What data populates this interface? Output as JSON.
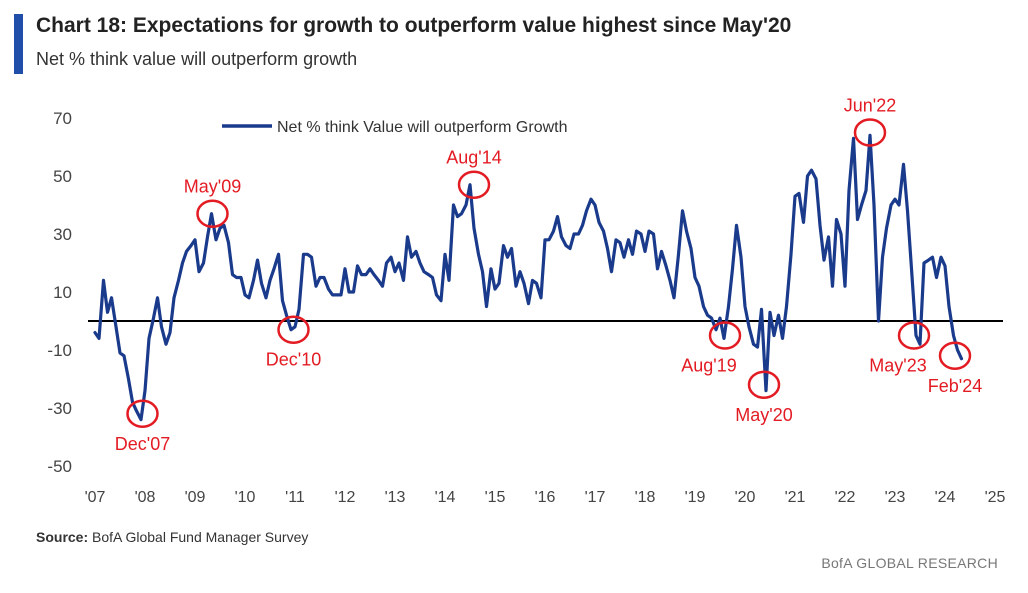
{
  "header": {
    "title": "Chart 18: Expectations for growth to outperform value highest since May'20",
    "subtitle": "Net % think value will outperform growth",
    "accent_color": "#1f4fa8"
  },
  "footer": {
    "source_label": "Source:",
    "source_text": "BofA Global Fund Manager Survey",
    "brand": "BofA GLOBAL RESEARCH"
  },
  "chart_data": {
    "type": "line",
    "legend": {
      "label": "Net % think Value will outperform Growth",
      "position": "top-center"
    },
    "series_color": "#1a3a8c",
    "annotation_color": "#e31b23",
    "ylim": [
      -50,
      70
    ],
    "yticks": [
      70,
      50,
      30,
      10,
      -10,
      -30,
      -50
    ],
    "xlim": [
      2007,
      2025
    ],
    "xticks": [
      {
        "v": 2007,
        "label": "'07"
      },
      {
        "v": 2008,
        "label": "'08"
      },
      {
        "v": 2009,
        "label": "'09"
      },
      {
        "v": 2010,
        "label": "'10"
      },
      {
        "v": 2011,
        "label": "'11"
      },
      {
        "v": 2012,
        "label": "'12"
      },
      {
        "v": 2013,
        "label": "'13"
      },
      {
        "v": 2014,
        "label": "'14"
      },
      {
        "v": 2015,
        "label": "'15"
      },
      {
        "v": 2016,
        "label": "'16"
      },
      {
        "v": 2017,
        "label": "'17"
      },
      {
        "v": 2018,
        "label": "'18"
      },
      {
        "v": 2019,
        "label": "'19"
      },
      {
        "v": 2020,
        "label": "'20"
      },
      {
        "v": 2021,
        "label": "'21"
      },
      {
        "v": 2022,
        "label": "'22"
      },
      {
        "v": 2023,
        "label": "'23"
      },
      {
        "v": 2024,
        "label": "'24"
      },
      {
        "v": 2025,
        "label": "'25"
      }
    ],
    "zero_line": 0,
    "series": [
      {
        "points": [
          [
            2007.0,
            -4
          ],
          [
            2007.08,
            -6
          ],
          [
            2007.17,
            14
          ],
          [
            2007.25,
            3
          ],
          [
            2007.33,
            8
          ],
          [
            2007.42,
            -2
          ],
          [
            2007.5,
            -11
          ],
          [
            2007.58,
            -12
          ],
          [
            2007.67,
            -20
          ],
          [
            2007.75,
            -28
          ],
          [
            2007.83,
            -31
          ],
          [
            2007.92,
            -34
          ],
          [
            2008.0,
            -24
          ],
          [
            2008.08,
            -6
          ],
          [
            2008.17,
            1
          ],
          [
            2008.25,
            8
          ],
          [
            2008.33,
            -2
          ],
          [
            2008.42,
            -8
          ],
          [
            2008.5,
            -4
          ],
          [
            2008.58,
            8
          ],
          [
            2008.67,
            14
          ],
          [
            2008.75,
            20
          ],
          [
            2008.83,
            24
          ],
          [
            2008.92,
            26
          ],
          [
            2009.0,
            28
          ],
          [
            2009.08,
            17
          ],
          [
            2009.17,
            20
          ],
          [
            2009.25,
            29
          ],
          [
            2009.33,
            37
          ],
          [
            2009.42,
            28
          ],
          [
            2009.5,
            32
          ],
          [
            2009.58,
            33
          ],
          [
            2009.67,
            27
          ],
          [
            2009.75,
            16
          ],
          [
            2009.83,
            15
          ],
          [
            2009.92,
            15
          ],
          [
            2010.0,
            9
          ],
          [
            2010.08,
            8
          ],
          [
            2010.17,
            14
          ],
          [
            2010.25,
            21
          ],
          [
            2010.33,
            13
          ],
          [
            2010.42,
            8
          ],
          [
            2010.5,
            14
          ],
          [
            2010.58,
            18
          ],
          [
            2010.67,
            23
          ],
          [
            2010.75,
            7
          ],
          [
            2010.83,
            2
          ],
          [
            2010.92,
            -3
          ],
          [
            2011.0,
            -2
          ],
          [
            2011.08,
            4
          ],
          [
            2011.17,
            23
          ],
          [
            2011.25,
            23
          ],
          [
            2011.33,
            22
          ],
          [
            2011.42,
            12
          ],
          [
            2011.5,
            15
          ],
          [
            2011.58,
            15
          ],
          [
            2011.67,
            11
          ],
          [
            2011.75,
            9
          ],
          [
            2011.83,
            9
          ],
          [
            2011.92,
            9
          ],
          [
            2012.0,
            18
          ],
          [
            2012.08,
            10
          ],
          [
            2012.17,
            10
          ],
          [
            2012.25,
            19
          ],
          [
            2012.33,
            16
          ],
          [
            2012.42,
            16
          ],
          [
            2012.5,
            18
          ],
          [
            2012.58,
            16
          ],
          [
            2012.67,
            14
          ],
          [
            2012.75,
            12
          ],
          [
            2012.83,
            20
          ],
          [
            2012.92,
            22
          ],
          [
            2013.0,
            17
          ],
          [
            2013.08,
            20
          ],
          [
            2013.17,
            14
          ],
          [
            2013.25,
            29
          ],
          [
            2013.33,
            22
          ],
          [
            2013.42,
            24
          ],
          [
            2013.5,
            20
          ],
          [
            2013.58,
            17
          ],
          [
            2013.67,
            16
          ],
          [
            2013.75,
            15
          ],
          [
            2013.83,
            9
          ],
          [
            2013.92,
            7
          ],
          [
            2014.0,
            23
          ],
          [
            2014.08,
            14
          ],
          [
            2014.17,
            40
          ],
          [
            2014.25,
            36
          ],
          [
            2014.33,
            37
          ],
          [
            2014.42,
            40
          ],
          [
            2014.5,
            47
          ],
          [
            2014.58,
            32
          ],
          [
            2014.67,
            23
          ],
          [
            2014.75,
            17
          ],
          [
            2014.83,
            5
          ],
          [
            2014.92,
            18
          ],
          [
            2015.0,
            11
          ],
          [
            2015.08,
            13
          ],
          [
            2015.17,
            26
          ],
          [
            2015.25,
            22
          ],
          [
            2015.33,
            25
          ],
          [
            2015.42,
            12
          ],
          [
            2015.5,
            17
          ],
          [
            2015.58,
            13
          ],
          [
            2015.67,
            6
          ],
          [
            2015.75,
            14
          ],
          [
            2015.83,
            13
          ],
          [
            2015.92,
            8
          ],
          [
            2016.0,
            28
          ],
          [
            2016.08,
            28
          ],
          [
            2016.17,
            31
          ],
          [
            2016.25,
            36
          ],
          [
            2016.33,
            29
          ],
          [
            2016.42,
            26
          ],
          [
            2016.5,
            25
          ],
          [
            2016.58,
            30
          ],
          [
            2016.67,
            30
          ],
          [
            2016.75,
            33
          ],
          [
            2016.83,
            38
          ],
          [
            2016.92,
            42
          ],
          [
            2017.0,
            40
          ],
          [
            2017.08,
            34
          ],
          [
            2017.17,
            31
          ],
          [
            2017.25,
            25
          ],
          [
            2017.33,
            17
          ],
          [
            2017.42,
            28
          ],
          [
            2017.5,
            27
          ],
          [
            2017.58,
            22
          ],
          [
            2017.67,
            28
          ],
          [
            2017.75,
            23
          ],
          [
            2017.83,
            31
          ],
          [
            2017.92,
            30
          ],
          [
            2018.0,
            24
          ],
          [
            2018.08,
            31
          ],
          [
            2018.17,
            30
          ],
          [
            2018.25,
            18
          ],
          [
            2018.33,
            24
          ],
          [
            2018.42,
            19
          ],
          [
            2018.5,
            14
          ],
          [
            2018.58,
            8
          ],
          [
            2018.67,
            23
          ],
          [
            2018.75,
            38
          ],
          [
            2018.83,
            31
          ],
          [
            2018.92,
            25
          ],
          [
            2019.0,
            15
          ],
          [
            2019.08,
            12
          ],
          [
            2019.17,
            5
          ],
          [
            2019.25,
            2
          ],
          [
            2019.33,
            1
          ],
          [
            2019.42,
            -3
          ],
          [
            2019.5,
            1
          ],
          [
            2019.58,
            -6
          ],
          [
            2019.67,
            5
          ],
          [
            2019.75,
            18
          ],
          [
            2019.83,
            33
          ],
          [
            2019.92,
            22
          ],
          [
            2020.0,
            5
          ],
          [
            2020.08,
            -2
          ],
          [
            2020.17,
            -8
          ],
          [
            2020.25,
            -9
          ],
          [
            2020.33,
            4
          ],
          [
            2020.42,
            -24
          ],
          [
            2020.5,
            3
          ],
          [
            2020.58,
            -5
          ],
          [
            2020.67,
            2
          ],
          [
            2020.75,
            -6
          ],
          [
            2020.83,
            5
          ],
          [
            2020.92,
            23
          ],
          [
            2021.0,
            43
          ],
          [
            2021.08,
            44
          ],
          [
            2021.17,
            34
          ],
          [
            2021.25,
            50
          ],
          [
            2021.33,
            52
          ],
          [
            2021.42,
            49
          ],
          [
            2021.5,
            33
          ],
          [
            2021.58,
            21
          ],
          [
            2021.67,
            29
          ],
          [
            2021.75,
            12
          ],
          [
            2021.83,
            35
          ],
          [
            2021.92,
            30
          ],
          [
            2022.0,
            12
          ],
          [
            2022.08,
            45
          ],
          [
            2022.17,
            63
          ],
          [
            2022.25,
            35
          ],
          [
            2022.33,
            40
          ],
          [
            2022.42,
            45
          ],
          [
            2022.5,
            64
          ],
          [
            2022.58,
            40
          ],
          [
            2022.67,
            0
          ],
          [
            2022.75,
            22
          ],
          [
            2022.83,
            32
          ],
          [
            2022.92,
            40
          ],
          [
            2023.0,
            42
          ],
          [
            2023.08,
            40
          ],
          [
            2023.17,
            54
          ],
          [
            2023.25,
            38
          ],
          [
            2023.33,
            18
          ],
          [
            2023.42,
            -5
          ],
          [
            2023.5,
            -8
          ],
          [
            2023.58,
            20
          ],
          [
            2023.67,
            21
          ],
          [
            2023.75,
            22
          ],
          [
            2023.83,
            15
          ],
          [
            2023.92,
            22
          ],
          [
            2024.0,
            19
          ],
          [
            2024.08,
            5
          ],
          [
            2024.17,
            -5
          ],
          [
            2024.25,
            -10
          ],
          [
            2024.33,
            -13
          ]
        ]
      }
    ],
    "annotations": [
      {
        "label": "Dec'07",
        "x": 2007.95,
        "y": -32,
        "label_pos": "below"
      },
      {
        "label": "May'09",
        "x": 2009.35,
        "y": 37,
        "label_pos": "above"
      },
      {
        "label": "Dec'10",
        "x": 2010.97,
        "y": -3,
        "label_pos": "below"
      },
      {
        "label": "Aug'14",
        "x": 2014.58,
        "y": 47,
        "label_pos": "above"
      },
      {
        "label": "Aug'19",
        "x": 2019.6,
        "y": -5,
        "label_pos": "below-left"
      },
      {
        "label": "May'20",
        "x": 2020.38,
        "y": -22,
        "label_pos": "below"
      },
      {
        "label": "Jun'22",
        "x": 2022.5,
        "y": 65,
        "label_pos": "above"
      },
      {
        "label": "May'23",
        "x": 2023.38,
        "y": -5,
        "label_pos": "below-left"
      },
      {
        "label": "Feb'24",
        "x": 2024.2,
        "y": -12,
        "label_pos": "below"
      }
    ]
  }
}
